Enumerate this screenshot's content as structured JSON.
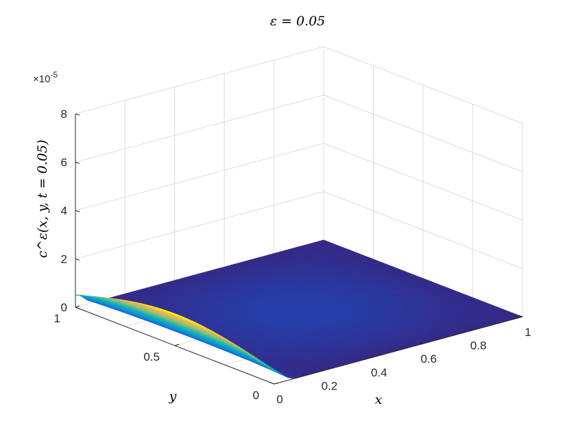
{
  "chart_data": {
    "type": "surface",
    "title": "ε = 0.05",
    "xlabel": "x",
    "ylabel": "y",
    "zlabel": "c^ε(x, y, t = 0.05)",
    "z_multiplier": "×10",
    "z_multiplier_exp": "-5",
    "xlim": [
      0,
      1
    ],
    "ylim": [
      0,
      1
    ],
    "zlim": [
      0,
      8e-05
    ],
    "x_ticks": [
      {
        "value": 0,
        "label": "0"
      },
      {
        "value": 0.2,
        "label": "0.2"
      },
      {
        "value": 0.4,
        "label": "0.4"
      },
      {
        "value": 0.6,
        "label": "0.6"
      },
      {
        "value": 0.8,
        "label": "0.8"
      },
      {
        "value": 1,
        "label": "1"
      }
    ],
    "y_ticks": [
      {
        "value": 0,
        "label": "0"
      },
      {
        "value": 0.5,
        "label": "0.5"
      },
      {
        "value": 1,
        "label": "1"
      }
    ],
    "z_ticks": [
      {
        "value": 0,
        "label": "0"
      },
      {
        "value": 2e-05,
        "label": "2"
      },
      {
        "value": 4e-05,
        "label": "4"
      },
      {
        "value": 6e-05,
        "label": "6"
      },
      {
        "value": 8e-05,
        "label": "8"
      }
    ],
    "grid": true,
    "colormap": "parula",
    "surface": {
      "description_values": {
        "boundary_peak_at_x0": 1.3e-05,
        "peak_location_y": 0.5,
        "edge_value_at_y0_and_y1_near_x0": 5e-06,
        "interior_value": 6e-07
      }
    }
  }
}
